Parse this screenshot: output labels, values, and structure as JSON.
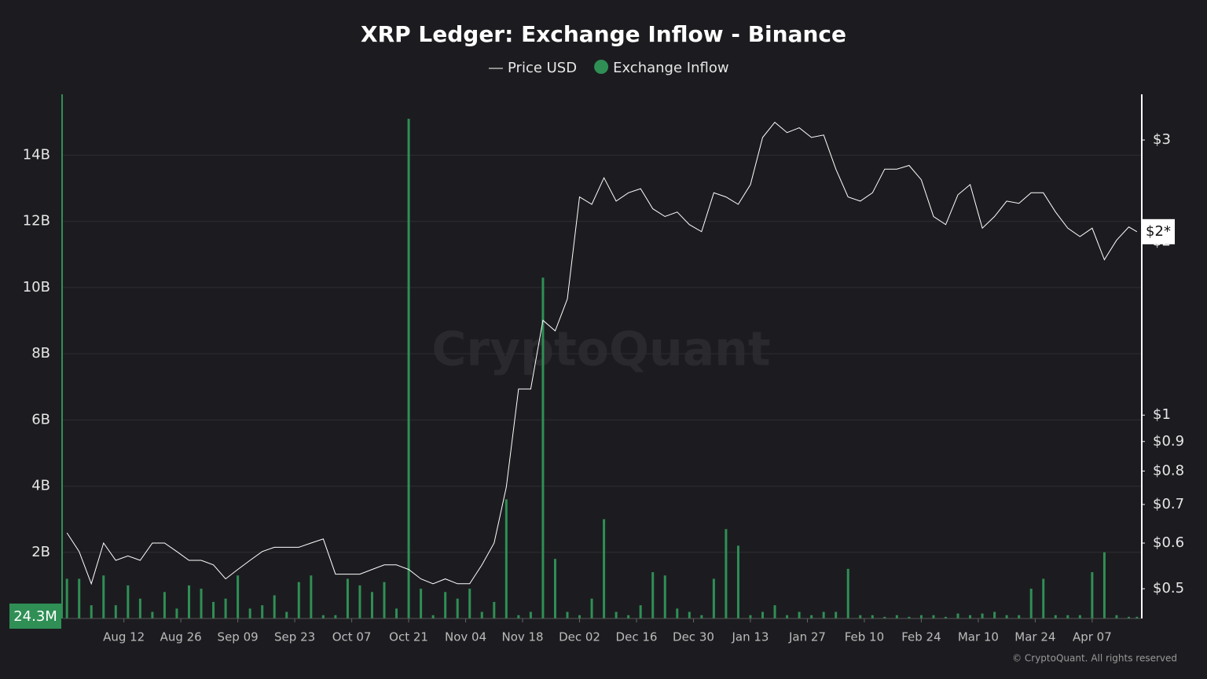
{
  "chart_data": {
    "type": "bar_line",
    "title": "XRP Ledger: Exchange Inflow - Binance",
    "watermark": "CryptoQuant",
    "footer": "© CryptoQuant. All rights reserved",
    "annotations": {
      "last_inflow": "24.3M",
      "last_price": "$2*"
    },
    "x": [
      -14,
      -11,
      -8,
      -5,
      -2,
      1,
      4,
      7,
      10,
      13,
      16,
      19,
      22,
      25,
      28,
      31,
      34,
      37,
      40,
      43,
      46,
      49,
      52,
      55,
      58,
      61,
      64,
      67,
      70,
      73,
      76,
      79,
      82,
      85,
      88,
      91,
      94,
      97,
      100,
      103,
      106,
      109,
      112,
      115,
      118,
      121,
      124,
      127,
      130,
      133,
      136,
      139,
      142,
      145,
      148,
      151,
      154,
      157,
      160,
      163,
      166,
      169,
      172,
      175,
      178,
      181,
      184,
      187,
      190,
      193,
      196,
      199,
      202,
      205,
      208,
      211,
      214,
      217,
      220,
      223,
      226,
      229,
      232,
      235,
      238,
      241,
      244,
      247,
      249
    ],
    "xlim": [
      -15,
      250
    ],
    "xticks": [
      {
        "value": 0,
        "label": "Aug 12"
      },
      {
        "value": 14,
        "label": "Aug 26"
      },
      {
        "value": 28,
        "label": "Sep 09"
      },
      {
        "value": 42,
        "label": "Sep 23"
      },
      {
        "value": 56,
        "label": "Oct 07"
      },
      {
        "value": 70,
        "label": "Oct 21"
      },
      {
        "value": 84,
        "label": "Nov 04"
      },
      {
        "value": 98,
        "label": "Nov 18"
      },
      {
        "value": 112,
        "label": "Dec 02"
      },
      {
        "value": 126,
        "label": "Dec 16"
      },
      {
        "value": 140,
        "label": "Dec 30"
      },
      {
        "value": 154,
        "label": "Jan 13"
      },
      {
        "value": 168,
        "label": "Jan 27"
      },
      {
        "value": 182,
        "label": "Feb 10"
      },
      {
        "value": 196,
        "label": "Feb 24"
      },
      {
        "value": 210,
        "label": "Mar 10"
      },
      {
        "value": 224,
        "label": "Mar 24"
      },
      {
        "value": 238,
        "label": "Apr 07"
      }
    ],
    "ylim": [
      0,
      15.84
    ],
    "yticks": [
      {
        "value": 2,
        "label": "2B"
      },
      {
        "value": 4,
        "label": "4B"
      },
      {
        "value": 6,
        "label": "6B"
      },
      {
        "value": 8,
        "label": "8B"
      },
      {
        "value": 10,
        "label": "10B"
      },
      {
        "value": 12,
        "label": "12B"
      },
      {
        "value": 14,
        "label": "14B"
      }
    ],
    "y2lim": [
      0.444,
      3.6
    ],
    "y2_log": true,
    "y2ticks": [
      {
        "value": 0.5,
        "label": "$0.5"
      },
      {
        "value": 0.6,
        "label": "$0.6"
      },
      {
        "value": 0.7,
        "label": "$0.7"
      },
      {
        "value": 0.8,
        "label": "$0.8"
      },
      {
        "value": 0.9,
        "label": "$0.9"
      },
      {
        "value": 1,
        "label": "$1"
      },
      {
        "value": 2,
        "label": "$2"
      },
      {
        "value": 3,
        "label": "$3"
      }
    ],
    "grid": true,
    "series": [
      {
        "name": "Price USD",
        "color": "#ffffff",
        "type": "line",
        "axis": "y2",
        "values": [
          0.625,
          0.58,
          0.51,
          0.6,
          0.56,
          0.57,
          0.56,
          0.6,
          0.6,
          0.58,
          0.56,
          0.56,
          0.55,
          0.52,
          0.54,
          0.56,
          0.58,
          0.59,
          0.59,
          0.59,
          0.6,
          0.61,
          0.53,
          0.53,
          0.53,
          0.54,
          0.55,
          0.55,
          0.54,
          0.52,
          0.51,
          0.52,
          0.51,
          0.51,
          0.55,
          0.6,
          0.75,
          1.11,
          1.11,
          1.46,
          1.4,
          1.59,
          2.39,
          2.32,
          2.58,
          2.35,
          2.43,
          2.47,
          2.28,
          2.21,
          2.25,
          2.14,
          2.08,
          2.43,
          2.39,
          2.32,
          2.51,
          3.03,
          3.22,
          3.09,
          3.15,
          3.03,
          3.06,
          2.67,
          2.39,
          2.35,
          2.43,
          2.67,
          2.67,
          2.71,
          2.56,
          2.21,
          2.14,
          2.41,
          2.51,
          2.11,
          2.21,
          2.35,
          2.33,
          2.43,
          2.43,
          2.25,
          2.11,
          2.04,
          2.11,
          1.86,
          2.01,
          2.12,
          2.08
        ]
      },
      {
        "name": "Exchange Inflow",
        "color": "#2f8f55",
        "type": "bar",
        "values": [
          1.2,
          1.2,
          0.4,
          1.3,
          0.4,
          1.0,
          0.6,
          0.2,
          0.8,
          0.3,
          1.0,
          0.9,
          0.5,
          0.6,
          1.3,
          0.3,
          0.4,
          0.7,
          0.2,
          1.1,
          1.3,
          0.1,
          0.1,
          1.2,
          1.0,
          0.8,
          1.1,
          0.3,
          15.1,
          0.9,
          0.1,
          0.8,
          0.6,
          0.9,
          0.2,
          0.5,
          3.6,
          0.1,
          0.2,
          10.3,
          1.8,
          0.2,
          0.1,
          0.6,
          3.0,
          0.2,
          0.1,
          0.4,
          1.4,
          1.3,
          0.3,
          0.2,
          0.1,
          1.2,
          2.7,
          2.2,
          0.1,
          0.2,
          0.4,
          0.1,
          0.2,
          0.1,
          0.2,
          0.2,
          1.5,
          0.1,
          0.1,
          0.05,
          0.1,
          0.05,
          0.1,
          0.1,
          0.05,
          0.15,
          0.1,
          0.15,
          0.2,
          0.1,
          0.1,
          0.9,
          1.2,
          0.1,
          0.1,
          0.1,
          1.4,
          2.0,
          0.1,
          0.05,
          0.05
        ]
      }
    ]
  }
}
